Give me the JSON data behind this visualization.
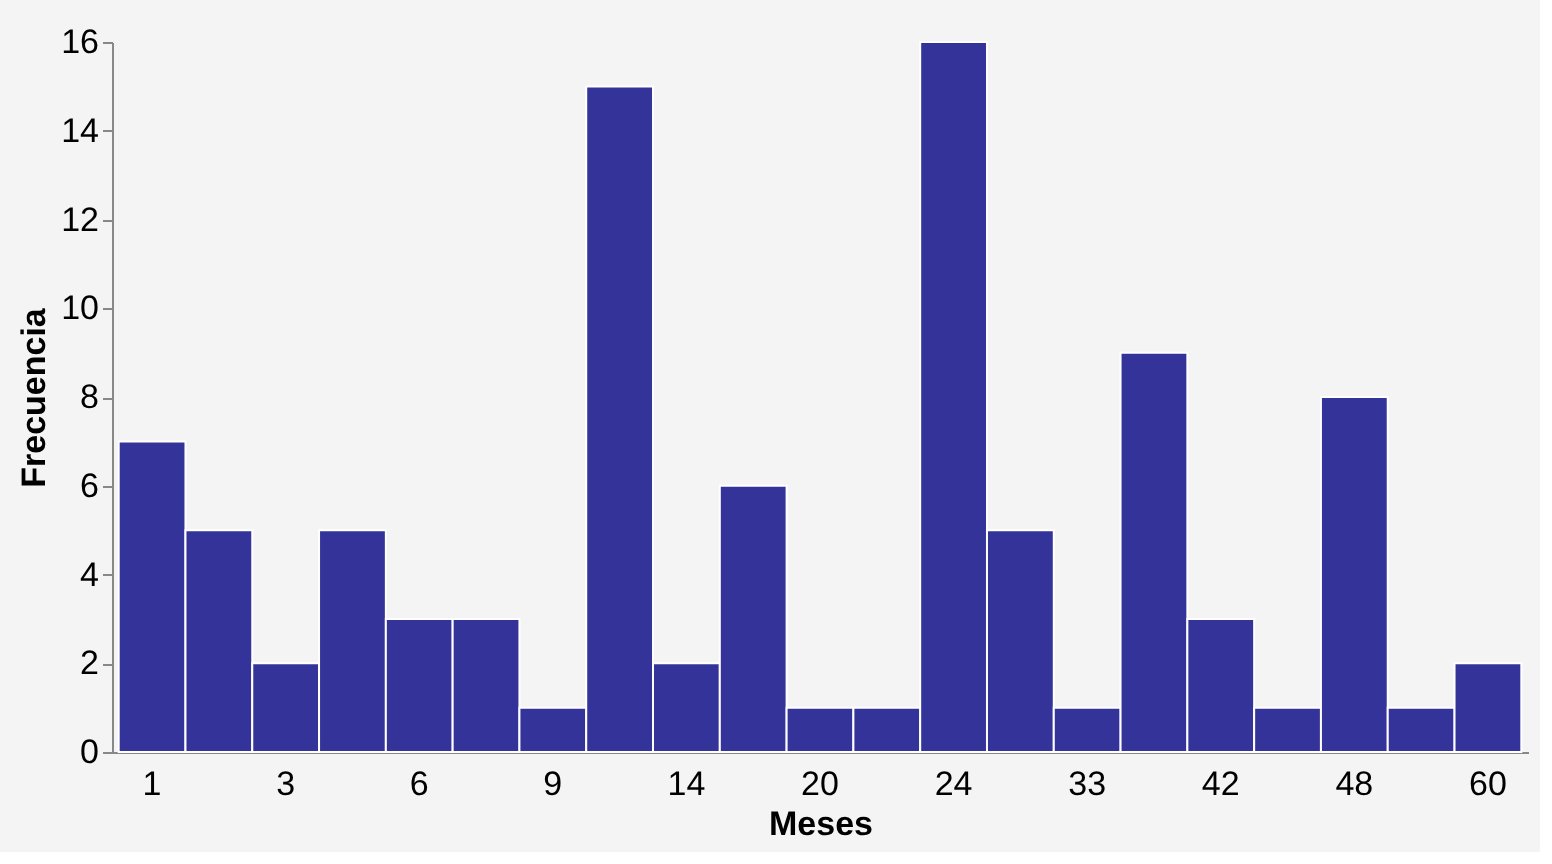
{
  "chart_data": {
    "type": "bar",
    "xlabel": "Meses",
    "ylabel": "Frecuencia",
    "categories": [
      "1",
      null,
      "3",
      null,
      "6",
      null,
      "9",
      null,
      "14",
      null,
      "20",
      null,
      "24",
      null,
      "33",
      null,
      "42",
      null,
      "48",
      null,
      "60"
    ],
    "values": [
      7,
      5,
      2,
      5,
      3,
      3,
      1,
      15,
      2,
      6,
      1,
      1,
      16,
      5,
      1,
      9,
      3,
      1,
      8,
      1,
      2
    ],
    "color": "#333399",
    "ylim": [
      0,
      16
    ],
    "yticks": [
      0,
      2,
      4,
      6,
      8,
      10,
      12,
      14,
      16
    ],
    "grid": false
  }
}
